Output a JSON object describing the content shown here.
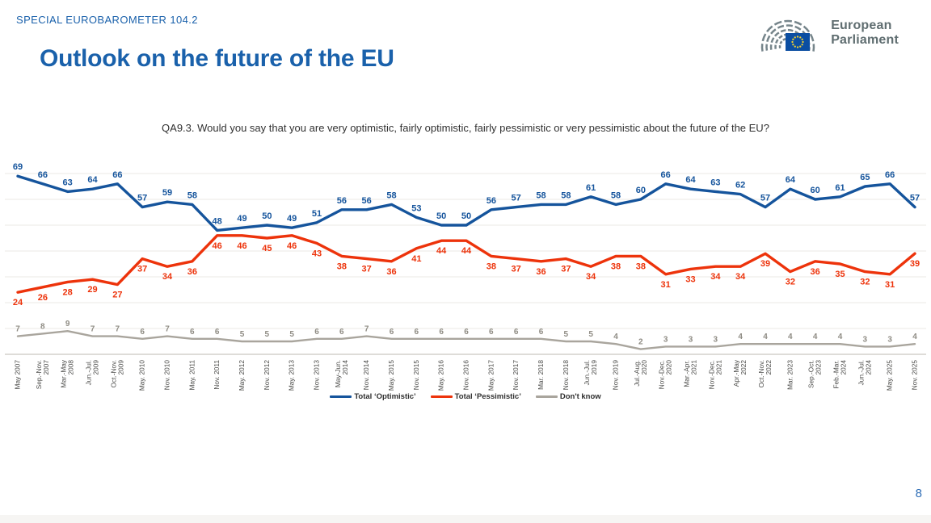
{
  "header": {
    "eyebrow": "SPECIAL EUROBAROMETER 104.2",
    "title": "Outlook on the future of the EU",
    "logo_line1": "European",
    "logo_line2": "Parliament"
  },
  "question": "QA9.3. Would you say that you are very optimistic, fairly optimistic, fairly pessimistic or very pessimistic about the future of the EU?",
  "page_number": "8",
  "colors": {
    "brand_blue": "#1a61ab",
    "optimistic_blue": "#15549c",
    "pessimistic_red": "#ed330b",
    "dont_know_grey": "#a9a59d",
    "grid_grey": "#ebe9e5",
    "axis_grey": "#c9c6c0",
    "page_number_blue": "#2e6db6",
    "logo_grey": "#5f6d70",
    "eu_flag_blue": "#0b4ea2",
    "eu_star_yellow": "#f5d22e"
  },
  "chart_data": {
    "type": "line",
    "title": "",
    "xlabel": "",
    "ylabel": "",
    "ylim": [
      0,
      70
    ],
    "grid": true,
    "legend_position": "bottom",
    "data_labels": true,
    "categories": [
      "May 2007",
      "Sep.-Nov.\n2007",
      "Mar.-May\n2008",
      "Jun.-Jul.\n2009",
      "Oct.-Nov.\n2009",
      "May. 2010",
      "Nov. 2010",
      "May. 2011",
      "Nov. 2011",
      "May. 2012",
      "Nov. 2012",
      "May. 2013",
      "Nov. 2013",
      "May-Jun.\n2014",
      "Nov. 2014",
      "May. 2015",
      "Nov. 2015",
      "May. 2016",
      "Nov. 2016",
      "May. 2017",
      "Nov. 2017",
      "Mar. 2018",
      "Nov. 2018",
      "Jun.-Jul.\n2019",
      "Nov. 2019",
      "Jul.-Aug.\n2020",
      "Nov.-Dec.\n2020",
      "Mar.-Apr.\n2021",
      "Nov.-Dec.\n2021",
      "Apr.-May\n2022",
      "Oct.-Nov.\n2022",
      "Mar. 2023",
      "Sep.-Oct.\n2023",
      "Feb.-Mar.\n2024",
      "Jun.-Jul.\n2024",
      "May. 2025",
      "Nov. 2025"
    ],
    "series": [
      {
        "key": "total-optimistic",
        "name": "Total ‘Optimistic’",
        "color": "#15549c",
        "label_color": "#15549c",
        "label_position": "above",
        "values": [
          69,
          66,
          63,
          64,
          66,
          57,
          59,
          58,
          48,
          49,
          50,
          49,
          51,
          56,
          56,
          58,
          53,
          50,
          50,
          56,
          57,
          58,
          58,
          61,
          58,
          60,
          66,
          64,
          63,
          62,
          57,
          64,
          60,
          61,
          65,
          66,
          57
        ]
      },
      {
        "key": "total-pessimistic",
        "name": "Total ‘Pessimistic’",
        "color": "#ed330b",
        "label_color": "#ed330b",
        "label_position": "below",
        "values": [
          24,
          26,
          28,
          29,
          27,
          37,
          34,
          36,
          46,
          46,
          45,
          46,
          43,
          38,
          37,
          36,
          41,
          44,
          44,
          38,
          37,
          36,
          37,
          34,
          38,
          38,
          31,
          33,
          34,
          34,
          39,
          32,
          36,
          35,
          32,
          31,
          39
        ]
      },
      {
        "key": "dont-know",
        "name": "Don't know",
        "color": "#a9a59d",
        "label_color": "#8f8c84",
        "label_position": "above",
        "values": [
          7,
          8,
          9,
          7,
          7,
          6,
          7,
          6,
          6,
          5,
          5,
          5,
          6,
          6,
          7,
          6,
          6,
          6,
          6,
          6,
          6,
          6,
          5,
          5,
          4,
          2,
          3,
          3,
          3,
          4,
          4,
          4,
          4,
          4,
          3,
          3,
          4
        ]
      }
    ]
  }
}
